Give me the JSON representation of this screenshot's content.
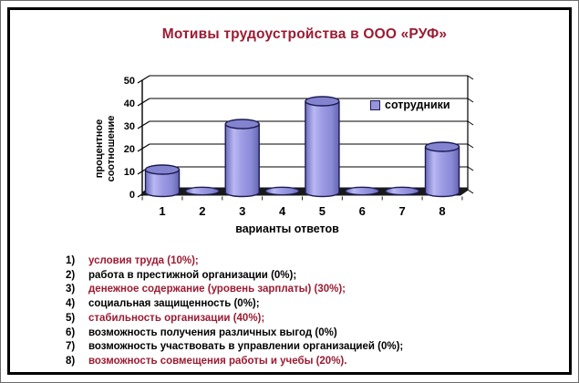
{
  "page": {
    "title": "Мотивы трудоустройства в ООО «РУФ»",
    "colors": {
      "accent_maroon": "#9b1b32",
      "text_black": "#000000",
      "bar_fill": "#9695dc",
      "bar_outline": "#1b1b52"
    }
  },
  "chart_data": {
    "type": "bar",
    "style": "3d-cylinder",
    "title": "",
    "categories": [
      "1",
      "2",
      "3",
      "4",
      "5",
      "6",
      "7",
      "8"
    ],
    "series": [
      {
        "name": "сотрудники",
        "values": [
          10,
          0,
          30,
          0,
          40,
          0,
          0,
          20
        ]
      }
    ],
    "xlabel": "варианты ответов",
    "ylabel": "процентное соотношение",
    "ylabel_lines": [
      "процентное",
      "соотношение"
    ],
    "ylim": [
      0,
      50
    ],
    "yticks": [
      0,
      10,
      20,
      30,
      40,
      50
    ],
    "grid": true,
    "legend": {
      "entries": [
        "сотрудники"
      ],
      "position": "right",
      "swatch_color": "#9695dc"
    }
  },
  "answers_list": {
    "items": [
      {
        "num": "1)",
        "text": "условия труда (10%);",
        "color": "#9b1b32"
      },
      {
        "num": "2)",
        "text": "работа в престижной организации (0%);",
        "color": "#000000"
      },
      {
        "num": "3)",
        "text": "денежное содержание (уровень зарплаты) (30%);",
        "color": "#9b1b32"
      },
      {
        "num": "4)",
        "text": "социальная защищенность (0%);",
        "color": "#000000"
      },
      {
        "num": "5)",
        "text": "стабильность организации (40%);",
        "color": "#9b1b32"
      },
      {
        "num": "6)",
        "text": "возможность получения различных выгод (0%)",
        "color": "#000000"
      },
      {
        "num": "7)",
        "text": "возможность участвовать в управлении организацией (0%);",
        "color": "#000000"
      },
      {
        "num": "8)",
        "text": "возможность совмещения работы и учебы (20%).",
        "color": "#9b1b32"
      }
    ]
  }
}
